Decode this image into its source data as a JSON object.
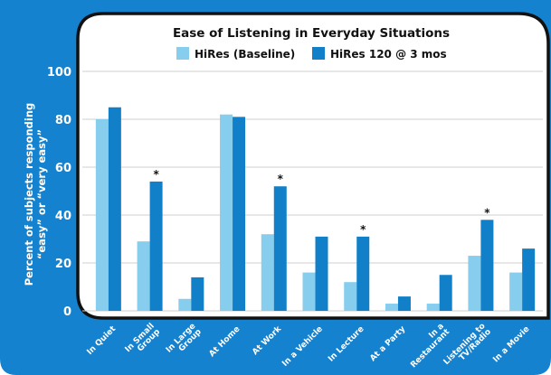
{
  "chart_data": {
    "type": "bar",
    "title": "Ease of Listening in Everyday Situations",
    "ylabel_line1": "Percent of subjects responding",
    "ylabel_line2": "“easy” or “very easy”",
    "xlabel": "",
    "ylim": [
      0,
      100
    ],
    "yticks": [
      0,
      20,
      40,
      60,
      80,
      100
    ],
    "grid": true,
    "legend_position": "top",
    "categories": [
      [
        "In Quiet"
      ],
      [
        "In Small",
        "Group"
      ],
      [
        "In Large",
        "Group"
      ],
      [
        "At Home"
      ],
      [
        "At Work"
      ],
      [
        "In a Vehicle"
      ],
      [
        "In Lecture"
      ],
      [
        "At a Party"
      ],
      [
        "In a",
        "Restaurant"
      ],
      [
        "Listening to",
        "TV/Radio"
      ],
      [
        "In a Movie"
      ]
    ],
    "series": [
      {
        "name": "HiRes (Baseline)",
        "color": "#87cdee",
        "values": [
          80,
          29,
          5,
          82,
          32,
          16,
          12,
          3,
          3,
          23,
          16
        ]
      },
      {
        "name": "HiRes 120 @ 3 mos",
        "color": "#1180c8",
        "values": [
          85,
          54,
          14,
          81,
          52,
          31,
          31,
          6,
          15,
          38,
          26
        ]
      }
    ],
    "significance_marker": "*",
    "significant": [
      false,
      true,
      false,
      false,
      true,
      false,
      true,
      false,
      false,
      true,
      false
    ]
  },
  "colors": {
    "background": "#1582cf",
    "panel": "#ffffff",
    "panel_border": "#111111",
    "grid": "#cfcfcf",
    "text_light": "#ffffff",
    "text_dark": "#111111"
  }
}
